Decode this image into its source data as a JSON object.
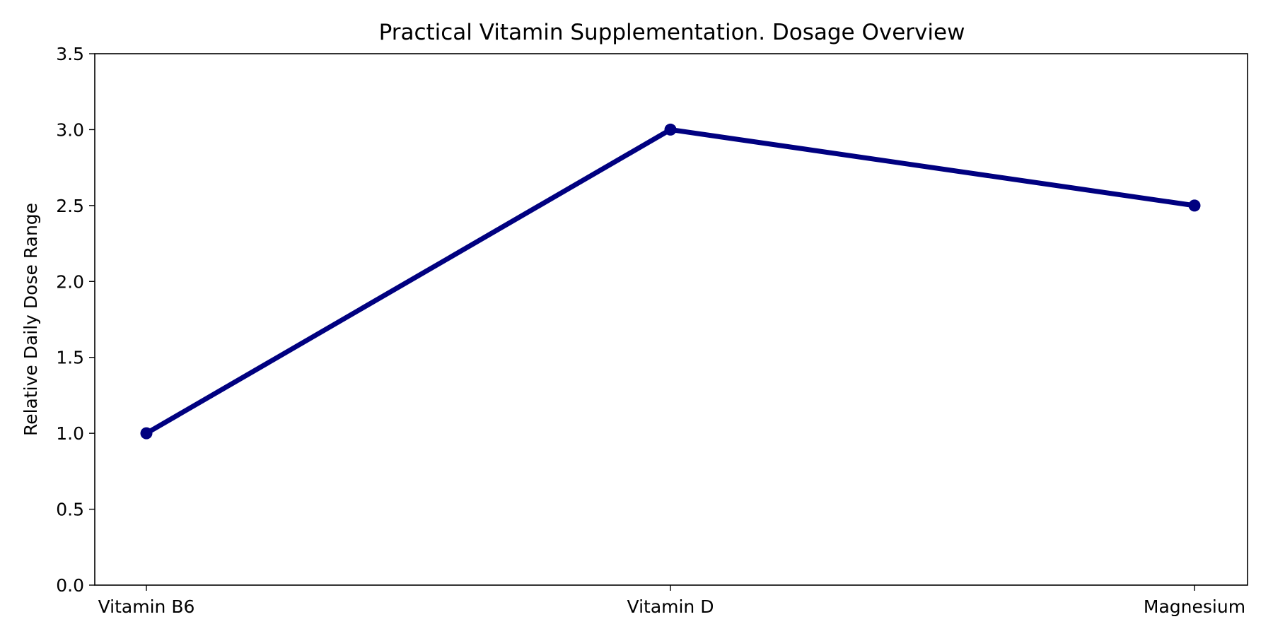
{
  "chart_data": {
    "type": "line",
    "title": "Practical Vitamin Supplementation. Dosage Overview",
    "xlabel": "",
    "ylabel": "Relative Daily Dose Range",
    "categories": [
      "Vitamin B6",
      "Vitamin D",
      "Magnesium"
    ],
    "series": [
      {
        "values": [
          1.0,
          3.0,
          2.5
        ],
        "color": "#000080",
        "marker": "circle"
      }
    ],
    "ylim": [
      0,
      3.5
    ],
    "yticks": [
      0.0,
      0.5,
      1.0,
      1.5,
      2.0,
      2.5,
      3.0,
      3.5
    ],
    "ytick_labels": [
      "0.0",
      "0.5",
      "1.0",
      "1.5",
      "2.0",
      "2.5",
      "3.0",
      "3.5"
    ],
    "grid": false,
    "legend": "none"
  }
}
